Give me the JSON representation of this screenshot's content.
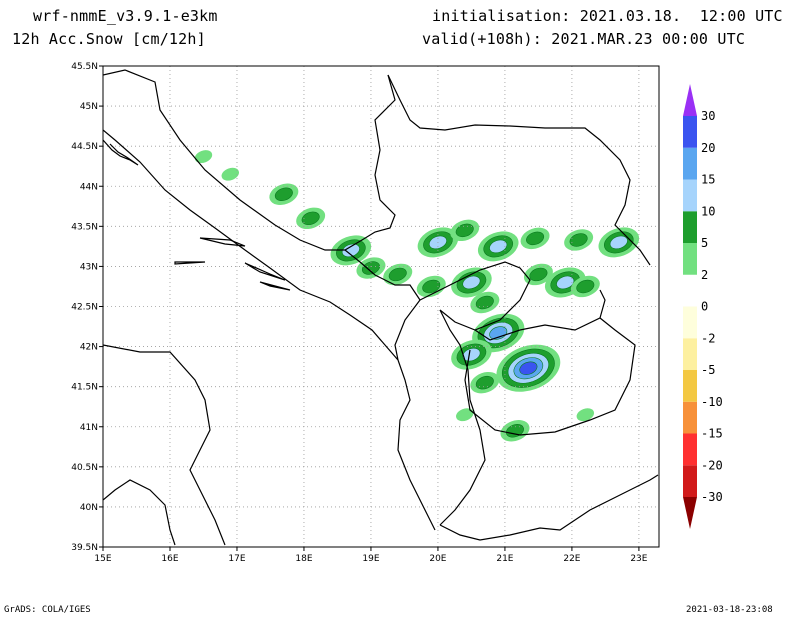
{
  "header": {
    "model": "wrf-nmmE_v3.9.1-e3km",
    "field": "12h Acc.Snow [cm/12h]",
    "init": "initialisation: 2021.03.18.  12:00 UTC",
    "valid": "valid(+108h): 2021.MAR.23 00:00 UTC"
  },
  "footer": {
    "left": "GrADS: COLA/IGES",
    "right": "2021-03-18-23:08"
  },
  "map": {
    "lon_range": [
      15,
      23.3
    ],
    "lat_range": [
      39.5,
      45.5
    ],
    "lon_ticks": [
      "15E",
      "16E",
      "17E",
      "18E",
      "19E",
      "20E",
      "21E",
      "22E",
      "23E"
    ],
    "lat_ticks": [
      "39.5N",
      "40N",
      "40.5N",
      "41N",
      "41.5N",
      "42N",
      "42.5N",
      "43N",
      "43.5N",
      "44N",
      "44.5N",
      "45N",
      "45.5N"
    ],
    "gridlines": true,
    "gridline_style": "dotted"
  },
  "colorbar": {
    "colors": [
      "#8b0000",
      "#d11a1a",
      "#ff3030",
      "#f7913a",
      "#f3c842",
      "#fdf0a0",
      "#fefedc",
      "#ffffff",
      "#72e080",
      "#1e9e2e",
      "#a6d4fc",
      "#5aa6f0",
      "#3a54f0",
      "#9a30f5"
    ],
    "labels": [
      "30",
      "20",
      "15",
      "10",
      "5",
      "2",
      "0",
      "-2",
      "-5",
      "-10",
      "-15",
      "-20",
      "-30"
    ]
  },
  "legend_colors": {
    "snow_light": "#72e080",
    "snow_medium": "#1e9e2e",
    "snow_10_15": "#a6d4fc",
    "snow_15_20": "#5aa6f0",
    "snow_20_30": "#3a54f0",
    "coastline": "#000000"
  },
  "snow_areas": [
    {
      "lon": 16.5,
      "lat": 44.37,
      "level": 1
    },
    {
      "lon": 16.9,
      "lat": 44.15,
      "level": 1
    },
    {
      "lon": 17.7,
      "lat": 43.9,
      "level": 2
    },
    {
      "lon": 18.1,
      "lat": 43.6,
      "level": 2
    },
    {
      "lon": 18.7,
      "lat": 43.2,
      "level": 3
    },
    {
      "lon": 19.0,
      "lat": 42.98,
      "level": 2
    },
    {
      "lon": 19.4,
      "lat": 42.9,
      "level": 2
    },
    {
      "lon": 19.9,
      "lat": 42.75,
      "level": 2
    },
    {
      "lon": 20.5,
      "lat": 42.8,
      "level": 3
    },
    {
      "lon": 20.7,
      "lat": 42.55,
      "level": 2
    },
    {
      "lon": 20.0,
      "lat": 43.3,
      "level": 3
    },
    {
      "lon": 20.4,
      "lat": 43.45,
      "level": 2
    },
    {
      "lon": 20.9,
      "lat": 43.25,
      "level": 3
    },
    {
      "lon": 21.45,
      "lat": 43.35,
      "level": 2
    },
    {
      "lon": 22.1,
      "lat": 43.33,
      "level": 2
    },
    {
      "lon": 22.7,
      "lat": 43.3,
      "level": 3
    },
    {
      "lon": 21.9,
      "lat": 42.8,
      "level": 3
    },
    {
      "lon": 22.2,
      "lat": 42.75,
      "level": 2
    },
    {
      "lon": 21.5,
      "lat": 42.9,
      "level": 2
    },
    {
      "lon": 20.9,
      "lat": 42.17,
      "level": 4
    },
    {
      "lon": 20.5,
      "lat": 41.9,
      "level": 3
    },
    {
      "lon": 21.35,
      "lat": 41.73,
      "level": 5
    },
    {
      "lon": 20.7,
      "lat": 41.55,
      "level": 2
    },
    {
      "lon": 21.15,
      "lat": 40.95,
      "level": 2
    },
    {
      "lon": 22.2,
      "lat": 41.15,
      "level": 1
    },
    {
      "lon": 20.4,
      "lat": 41.15,
      "level": 1
    }
  ]
}
